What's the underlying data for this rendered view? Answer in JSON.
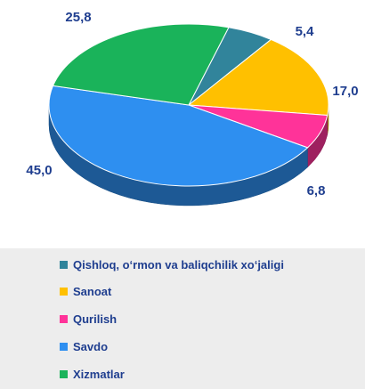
{
  "chart_data": {
    "type": "pie",
    "title": "",
    "categories": [
      "Qishloq, o‘rmon va baliqchilik xo‘jaligi",
      "Sanoat",
      "Qurilish",
      "Savdo",
      "Xizmatlar"
    ],
    "values": [
      5.4,
      17.0,
      6.8,
      45.0,
      25.8
    ],
    "value_labels": [
      "5,4",
      "17,0",
      "6,8",
      "45,0",
      "25,8"
    ],
    "colors": [
      "#31849b",
      "#ffc000",
      "#ff3399",
      "#2e8ff0",
      "#1ab35a"
    ],
    "legend_position": "bottom",
    "style": "3d"
  }
}
